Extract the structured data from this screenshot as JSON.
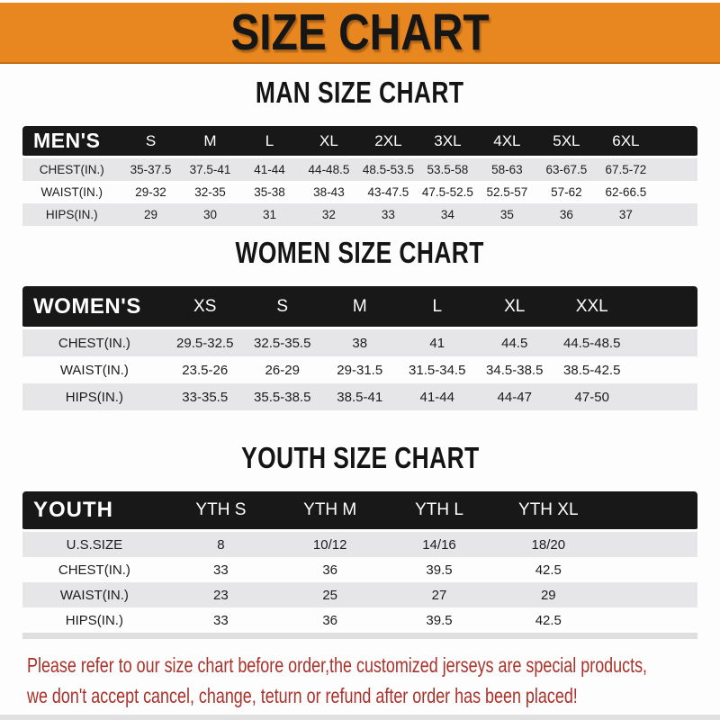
{
  "banner": {
    "title": "SIZE CHART"
  },
  "colors": {
    "banner_orange": "#e8861f",
    "table_header_black": "#181818",
    "row_stripe_gray": "#e6e6e8",
    "footer_red": "#a9322a"
  },
  "tables": [
    {
      "id": "men",
      "title": "MAN SIZE CHART",
      "corner_label": "MEN'S",
      "columns": [
        "S",
        "M",
        "L",
        "XL",
        "2XL",
        "3XL",
        "4XL",
        "5XL",
        "6XL"
      ],
      "rows": [
        {
          "label": "CHEST(IN.)",
          "values": [
            "35-37.5",
            "37.5-41",
            "41-44",
            "44-48.5",
            "48.5-53.5",
            "53.5-58",
            "58-63",
            "63-67.5",
            "67.5-72"
          ]
        },
        {
          "label": "WAIST(IN.)",
          "values": [
            "29-32",
            "32-35",
            "35-38",
            "38-43",
            "43-47.5",
            "47.5-52.5",
            "52.5-57",
            "57-62",
            "62-66.5"
          ]
        },
        {
          "label": "HIPS(IN.)",
          "values": [
            "29",
            "30",
            "31",
            "32",
            "33",
            "34",
            "35",
            "36",
            "37"
          ]
        }
      ]
    },
    {
      "id": "women",
      "title": "WOMEN SIZE CHART",
      "corner_label": "WOMEN'S",
      "columns": [
        "XS",
        "S",
        "M",
        "L",
        "XL",
        "XXL"
      ],
      "rows": [
        {
          "label": "CHEST(IN.)",
          "values": [
            "29.5-32.5",
            "32.5-35.5",
            "38",
            "41",
            "44.5",
            "44.5-48.5"
          ]
        },
        {
          "label": "WAIST(IN.)",
          "values": [
            "23.5-26",
            "26-29",
            "29-31.5",
            "31.5-34.5",
            "34.5-38.5",
            "38.5-42.5"
          ]
        },
        {
          "label": "HIPS(IN.)",
          "values": [
            "33-35.5",
            "35.5-38.5",
            "38.5-41",
            "41-44",
            "44-47",
            "47-50"
          ]
        }
      ]
    },
    {
      "id": "youth",
      "title": "YOUTH SIZE CHART",
      "corner_label": "YOUTH",
      "columns": [
        "YTH S",
        "YTH M",
        "YTH L",
        "YTH XL"
      ],
      "rows": [
        {
          "label": "U.S.SIZE",
          "values": [
            "8",
            "10/12",
            "14/16",
            "18/20"
          ]
        },
        {
          "label": "CHEST(IN.)",
          "values": [
            "33",
            "36",
            "39.5",
            "42.5"
          ]
        },
        {
          "label": "WAIST(IN.)",
          "values": [
            "23",
            "25",
            "27",
            "29"
          ]
        },
        {
          "label": "HIPS(IN.)",
          "values": [
            "33",
            "36",
            "39.5",
            "42.5"
          ]
        }
      ]
    }
  ],
  "footer": {
    "line1": "Please refer to our size chart before order,the customized jerseys are special products,",
    "line2": "we don't accept cancel, change, teturn or refund after order has been placed!"
  }
}
